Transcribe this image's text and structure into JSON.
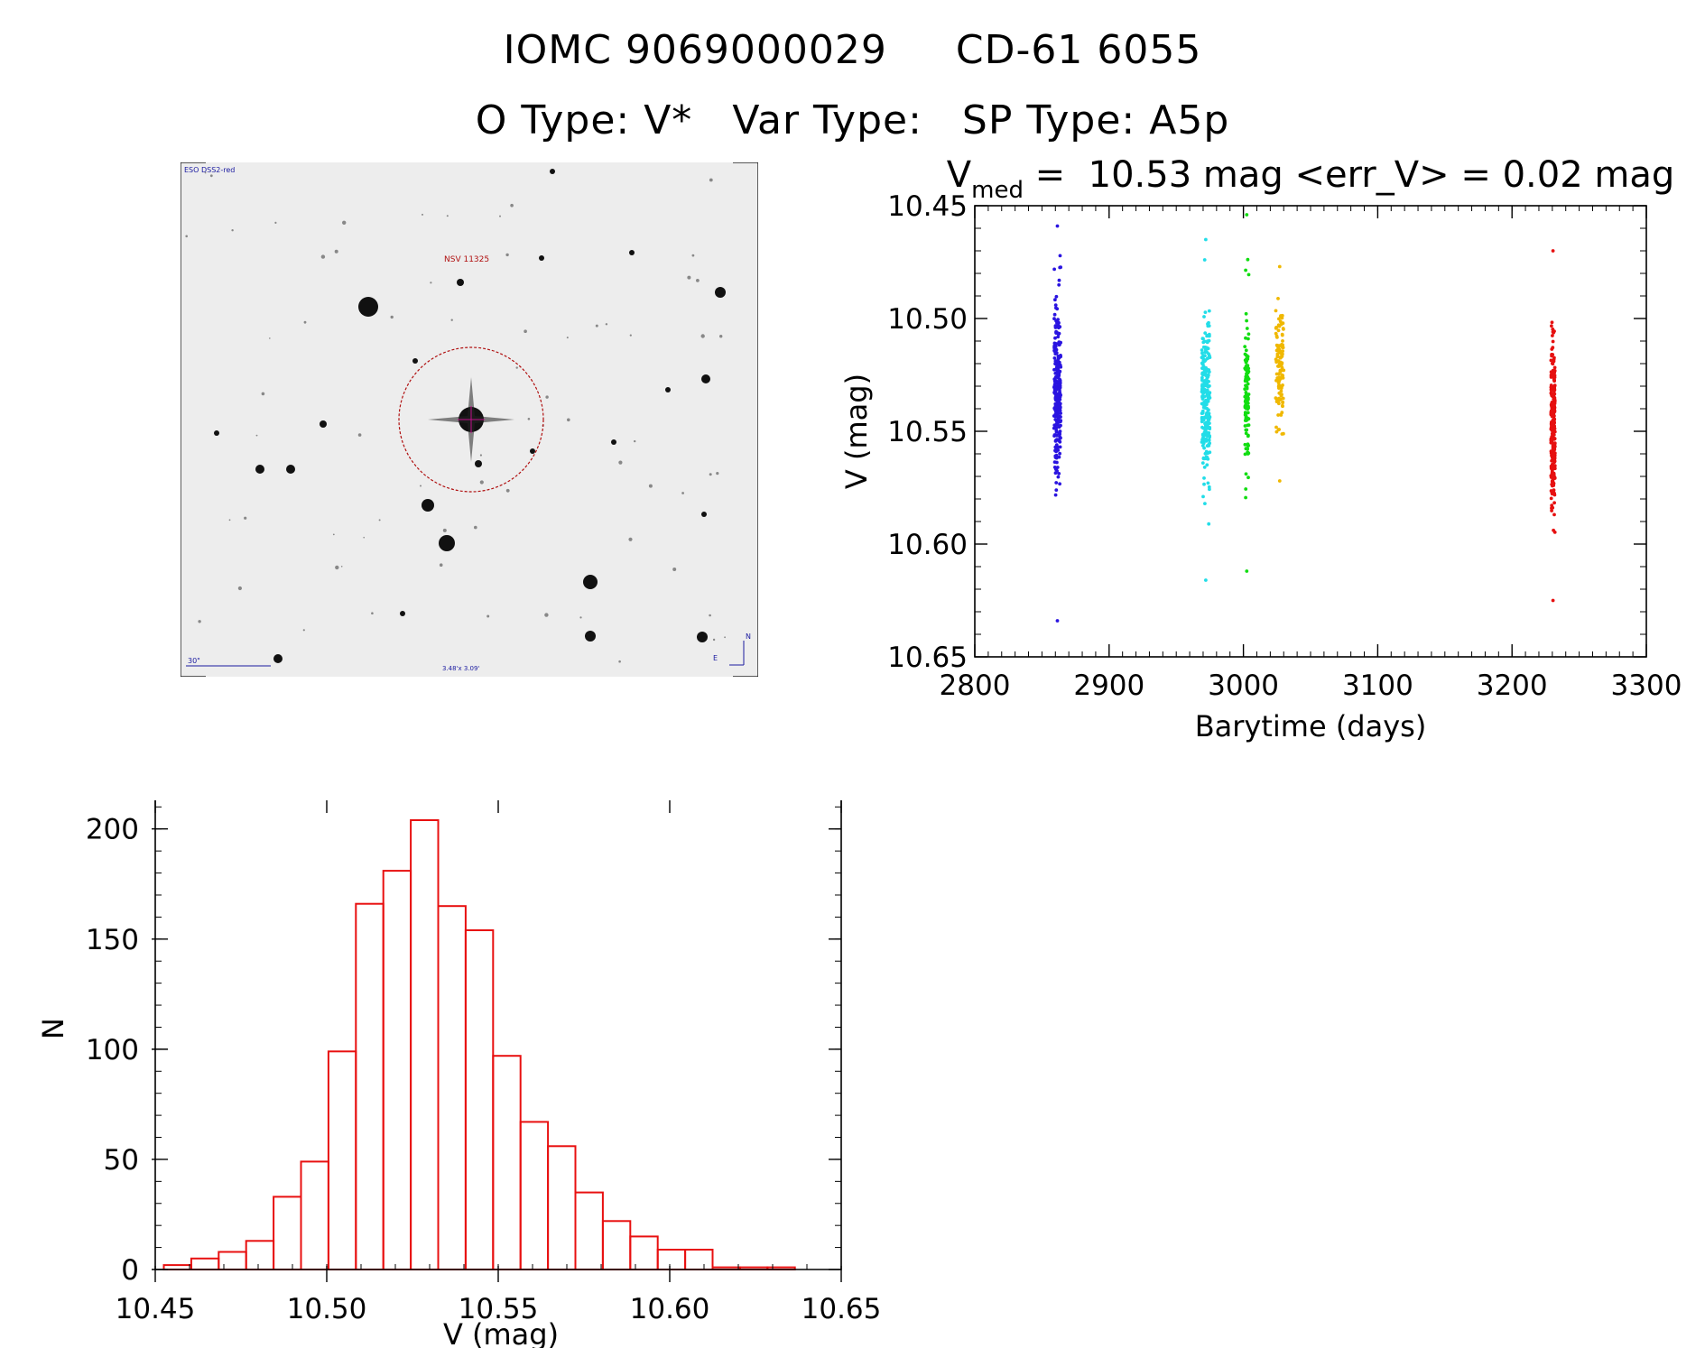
{
  "header": {
    "object_id": "IOMC 9069000029",
    "object_name": "CD-61  6055",
    "o_type": "O Type: V*",
    "var_type": "Var Type:",
    "sp_type": "SP Type: A5p"
  },
  "sky_image": {
    "survey_label": "ESO DSS2-red",
    "target_label": "NSV 11325",
    "scale_label": "30\"",
    "fov_label": "3.48'x 3.09'",
    "north_label": "N",
    "east_label": "E",
    "background": "#ededed"
  },
  "chart_data": [
    {
      "type": "scatter",
      "title_main": "V",
      "title_sub": "med",
      "title_rest": " =  10.53 mag <err_V> = 0.02 mag",
      "xlabel": "Barytime (days)",
      "ylabel": "V (mag)",
      "xlim": [
        2800,
        3300
      ],
      "ylim": [
        10.65,
        10.45
      ],
      "xticks": [
        "2800",
        "2900",
        "3000",
        "3100",
        "3200",
        "3300"
      ],
      "yticks": [
        "10.45",
        "10.50",
        "10.55",
        "10.60",
        "10.65"
      ],
      "series": [
        {
          "color": "#2a14e0",
          "x_range": [
            2859,
            2864
          ],
          "y_min": 10.459,
          "y_max": 10.634,
          "y_center": 10.533,
          "spread": 0.018,
          "count": 260
        },
        {
          "color": "#22dde8",
          "x_range": [
            2969,
            2975
          ],
          "y_min": 10.465,
          "y_max": 10.616,
          "y_center": 10.535,
          "spread": 0.018,
          "count": 240
        },
        {
          "color": "#11dd11",
          "x_range": [
            3001,
            3004
          ],
          "y_min": 10.454,
          "y_max": 10.612,
          "y_center": 10.533,
          "spread": 0.017,
          "count": 110
        },
        {
          "color": "#f0b800",
          "x_range": [
            3024,
            3030
          ],
          "y_min": 10.477,
          "y_max": 10.572,
          "y_center": 10.522,
          "spread": 0.014,
          "count": 120
        },
        {
          "color": "#e61010",
          "x_range": [
            3229,
            3232
          ],
          "y_min": 10.47,
          "y_max": 10.625,
          "y_center": 10.548,
          "spread": 0.02,
          "count": 260
        }
      ]
    },
    {
      "type": "bar",
      "title": "",
      "xlabel": "V (mag)",
      "ylabel": "N",
      "xlim": [
        10.45,
        10.65
      ],
      "ylim": [
        0,
        213
      ],
      "xticks": [
        "10.45",
        "10.50",
        "10.55",
        "10.60",
        "10.65"
      ],
      "yticks": [
        "0",
        "50",
        "100",
        "150",
        "200"
      ],
      "bin_start": 10.4525,
      "bin_width": 0.008,
      "values": [
        2,
        5,
        8,
        13,
        33,
        49,
        99,
        166,
        181,
        204,
        165,
        154,
        97,
        67,
        56,
        35,
        22,
        15,
        9,
        9,
        1,
        1,
        1
      ],
      "color": "#e81010"
    }
  ]
}
